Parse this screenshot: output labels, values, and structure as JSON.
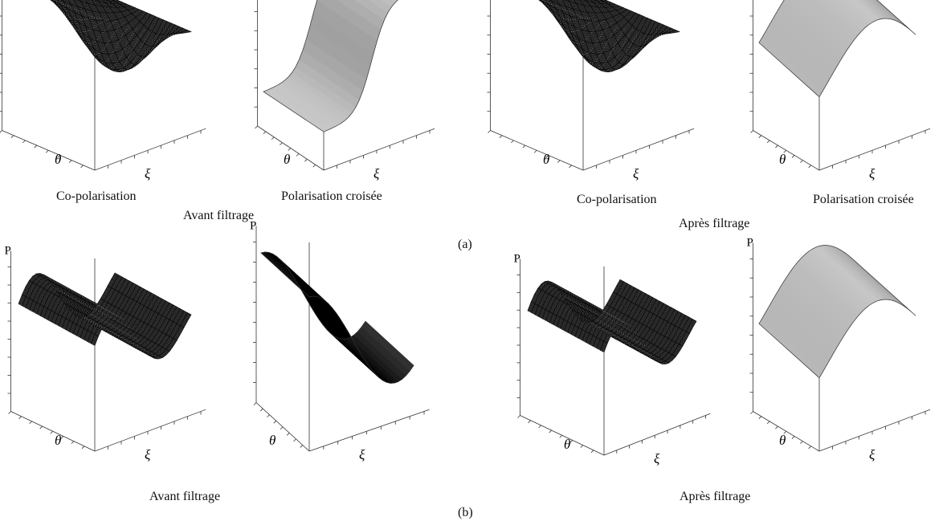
{
  "row_a": {
    "label": "(a)",
    "left": {
      "group": "Avant filtrage",
      "co": "Co-polarisation",
      "cross": "Polarisation croisée"
    },
    "right": {
      "group": "Après filtrage",
      "co": "Co-polarisation",
      "cross": "Polarisation croisée"
    }
  },
  "row_b": {
    "label": "(b)",
    "left": {
      "group": "Avant filtrage"
    },
    "right": {
      "group": "Après filtrage"
    }
  },
  "axes": {
    "p": "P",
    "theta": "θ",
    "xi": "ξ"
  },
  "panels": [
    {
      "id": "a1",
      "style": "mesh"
    },
    {
      "id": "a2",
      "style": "shaded"
    },
    {
      "id": "a3",
      "style": "mesh"
    },
    {
      "id": "a4",
      "style": "shaded"
    },
    {
      "id": "b1",
      "style": "mesh"
    },
    {
      "id": "b2",
      "style": "shaded-dark"
    },
    {
      "id": "b3",
      "style": "mesh"
    },
    {
      "id": "b4",
      "style": "shaded"
    }
  ]
}
